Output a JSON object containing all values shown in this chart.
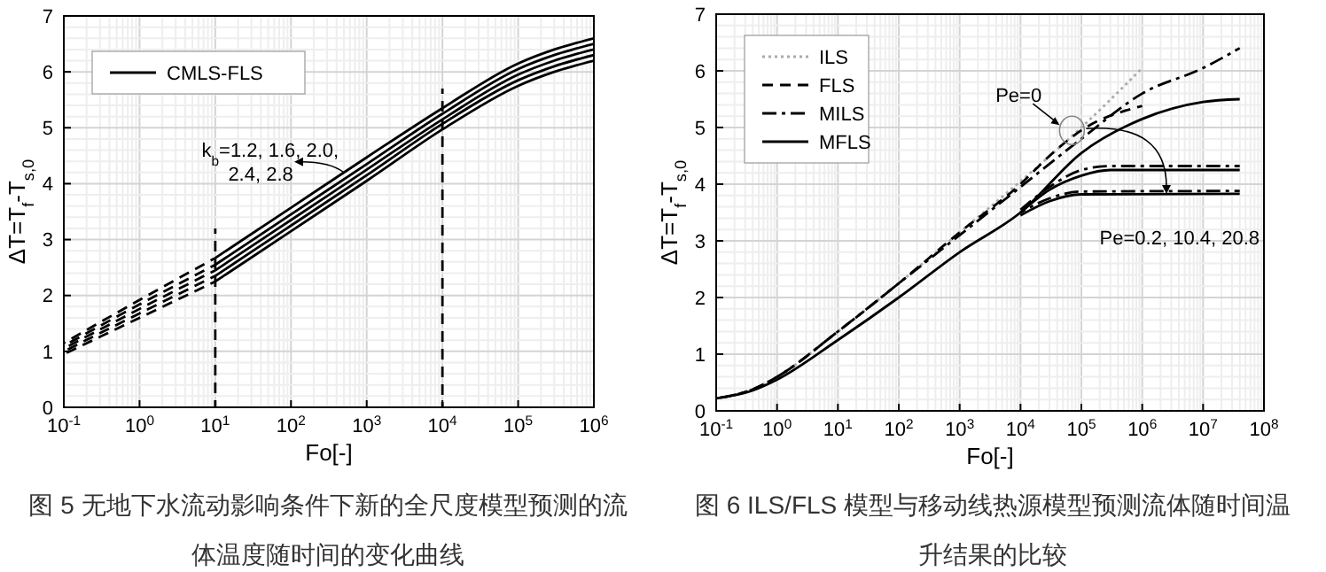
{
  "chart_data": [
    {
      "type": "line",
      "title": "图 5 无地下水流动影响条件下新的全尺度模型预测的流体温度随时间的变化曲线",
      "xlabel": "Fo[-]",
      "ylabel": "ΔT=T$_{f}$-T$_{s,0}$",
      "log": "x",
      "grid": true,
      "legend": "top left",
      "xlim": [
        0.1,
        1000000
      ],
      "ylim": [
        0,
        7
      ],
      "xticks": [
        {
          "value": 0.1,
          "label": "10$^{-1}$"
        },
        {
          "value": 1,
          "label": "10$^{0}$"
        },
        {
          "value": 10,
          "label": "10$^{1}$"
        },
        {
          "value": 100,
          "label": "10$^{2}$"
        },
        {
          "value": 1000,
          "label": "10$^{3}$"
        },
        {
          "value": 10000,
          "label": "10$^{4}$"
        },
        {
          "value": 100000,
          "label": "10$^{5}$"
        },
        {
          "value": 1000000,
          "label": "10$^{6}$"
        }
      ],
      "yticks": [
        0,
        1,
        2,
        3,
        4,
        5,
        6,
        7
      ],
      "annotations": [
        "k$_{b}$=1.2, 1.6, 2.0,",
        {
          "text": "2.4, 2.8",
          "x": 500,
          "y": 4.2
        }
      ],
      "series": [
        {
          "name": "CMLS-FLS",
          "color": "#000000",
          "line_style": "solid",
          "x": [
            10,
            100,
            1000,
            10000,
            100000,
            300000,
            1000000
          ],
          "values": [
            2.67,
            3.57,
            4.47,
            5.35,
            6.15,
            6.4,
            6.6
          ]
        },
        {
          "color": "#000000",
          "line_style": "solid",
          "x": [
            10,
            100,
            1000,
            10000,
            100000,
            300000,
            1000000
          ],
          "values": [
            2.55,
            3.45,
            4.35,
            5.25,
            6.05,
            6.3,
            6.5
          ]
        },
        {
          "color": "#000000",
          "line_style": "solid",
          "x": [
            10,
            100,
            1000,
            10000,
            100000,
            300000,
            1000000
          ],
          "values": [
            2.45,
            3.35,
            4.25,
            5.15,
            5.95,
            6.2,
            6.4
          ]
        },
        {
          "color": "#000000",
          "line_style": "solid",
          "x": [
            10,
            100,
            1000,
            10000,
            100000,
            300000,
            1000000
          ],
          "values": [
            2.35,
            3.25,
            4.15,
            5.07,
            5.85,
            6.1,
            6.3
          ]
        },
        {
          "color": "#000000",
          "line_style": "solid",
          "x": [
            10,
            100,
            1000,
            10000,
            100000,
            300000,
            1000000
          ],
          "values": [
            2.25,
            3.15,
            4.05,
            4.97,
            5.75,
            6.0,
            6.2
          ]
        },
        {
          "color": "#000000",
          "line_style": "dashed",
          "x": [
            0.1,
            1,
            10
          ],
          "values": [
            1.15,
            1.92,
            2.67
          ]
        },
        {
          "color": "#000000",
          "line_style": "dashed",
          "x": [
            0.1,
            1,
            10
          ],
          "values": [
            1.1,
            1.84,
            2.55
          ]
        },
        {
          "color": "#000000",
          "line_style": "dashed",
          "x": [
            0.1,
            1,
            10
          ],
          "values": [
            1.05,
            1.76,
            2.45
          ]
        },
        {
          "color": "#000000",
          "line_style": "dashed",
          "x": [
            0.1,
            1,
            10
          ],
          "values": [
            1.0,
            1.68,
            2.35
          ]
        },
        {
          "color": "#000000",
          "line_style": "dashed",
          "x": [
            0.1,
            1,
            10
          ],
          "values": [
            0.95,
            1.6,
            2.25
          ]
        },
        {
          "color": "#000000",
          "line_style": "dashed",
          "x": [
            10,
            10
          ],
          "values": [
            0,
            3.2
          ]
        },
        {
          "color": "#000000",
          "line_style": "dashed",
          "x": [
            10000,
            10000
          ],
          "values": [
            0,
            5.7
          ]
        }
      ]
    },
    {
      "type": "line",
      "title": "图 6 ILS/FLS 模型与移动线热源模型预测流体随时间温升结果的比较",
      "xlabel": "Fo[-]",
      "ylabel": "ΔT=T$_{f}$-T$_{s,0}$",
      "log": "x",
      "grid": true,
      "legend": "top left",
      "xlim": [
        0.1,
        100000000
      ],
      "ylim": [
        0,
        7
      ],
      "xticks": [
        {
          "value": 0.1,
          "label": "10$^{-1}$"
        },
        {
          "value": 1,
          "label": "10$^{0}$"
        },
        {
          "value": 10,
          "label": "10$^{1}$"
        },
        {
          "value": 100,
          "label": "10$^{2}$"
        },
        {
          "value": 1000,
          "label": "10$^{3}$"
        },
        {
          "value": 10000,
          "label": "10$^{4}$"
        },
        {
          "value": 100000,
          "label": "10$^{5}$"
        },
        {
          "value": 1000000,
          "label": "10$^{6}$"
        },
        {
          "value": 10000000,
          "label": "10$^{7}$"
        },
        {
          "value": 100000000,
          "label": "10$^{8}$"
        }
      ],
      "yticks": [
        0,
        1,
        2,
        3,
        4,
        5,
        6,
        7
      ],
      "annotations": [
        {
          "text": "Pe=0",
          "x": 70000,
          "y": 4.95
        },
        {
          "text": "Pe=0.2, 10.4, 20.8",
          "x": 2500000,
          "y": 3.83
        }
      ],
      "series": [
        {
          "name": "ILS",
          "color": "#aaaaaa",
          "line_style": "dotted",
          "x": [
            0.1,
            0.4,
            1,
            10,
            100,
            1000,
            10000,
            100000,
            1000000
          ],
          "values": [
            0.22,
            0.38,
            0.6,
            1.4,
            2.25,
            3.15,
            4.05,
            5.0,
            6.05
          ]
        },
        {
          "name": "FLS",
          "color": "#000000",
          "line_style": "dashed",
          "x": [
            0.1,
            0.4,
            1,
            10,
            100,
            1000,
            10000,
            30000,
            100000,
            1000000
          ],
          "values": [
            0.22,
            0.38,
            0.6,
            1.4,
            2.25,
            3.15,
            4.0,
            4.5,
            4.95,
            5.38
          ]
        },
        {
          "name": "MILS",
          "color": "#000000",
          "line_style": "dashdot",
          "x": [
            0.1,
            0.4,
            1,
            10,
            100,
            1000,
            10000,
            100000,
            1000000,
            10000000,
            40000000
          ],
          "values": [
            0.22,
            0.38,
            0.6,
            1.4,
            2.25,
            3.1,
            3.95,
            4.8,
            5.6,
            6.05,
            6.4
          ]
        },
        {
          "name": "MFLS",
          "color": "#000000",
          "line_style": "solid",
          "x": [
            0.1,
            0.4,
            1,
            10,
            100,
            1000,
            10000,
            100000,
            1000000,
            10000000,
            40000000
          ],
          "values": [
            0.22,
            0.36,
            0.55,
            1.25,
            2.0,
            2.8,
            3.5,
            4.55,
            5.15,
            5.45,
            5.5
          ]
        },
        {
          "color": "#000000",
          "line_style": "dashdot",
          "x": [
            10000,
            30000,
            100000,
            300000,
            40000000
          ],
          "values": [
            3.55,
            3.95,
            4.25,
            4.32,
            4.32
          ]
        },
        {
          "color": "#000000",
          "line_style": "solid",
          "x": [
            10000,
            30000,
            100000,
            300000,
            40000000
          ],
          "values": [
            3.5,
            3.9,
            4.15,
            4.25,
            4.25
          ]
        },
        {
          "color": "#000000",
          "line_style": "dashdot",
          "x": [
            10000,
            30000,
            100000,
            40000000
          ],
          "values": [
            3.5,
            3.75,
            3.87,
            3.88
          ]
        },
        {
          "color": "#000000",
          "line_style": "solid",
          "x": [
            10000,
            30000,
            100000,
            40000000
          ],
          "values": [
            3.45,
            3.7,
            3.82,
            3.83
          ]
        }
      ]
    }
  ]
}
